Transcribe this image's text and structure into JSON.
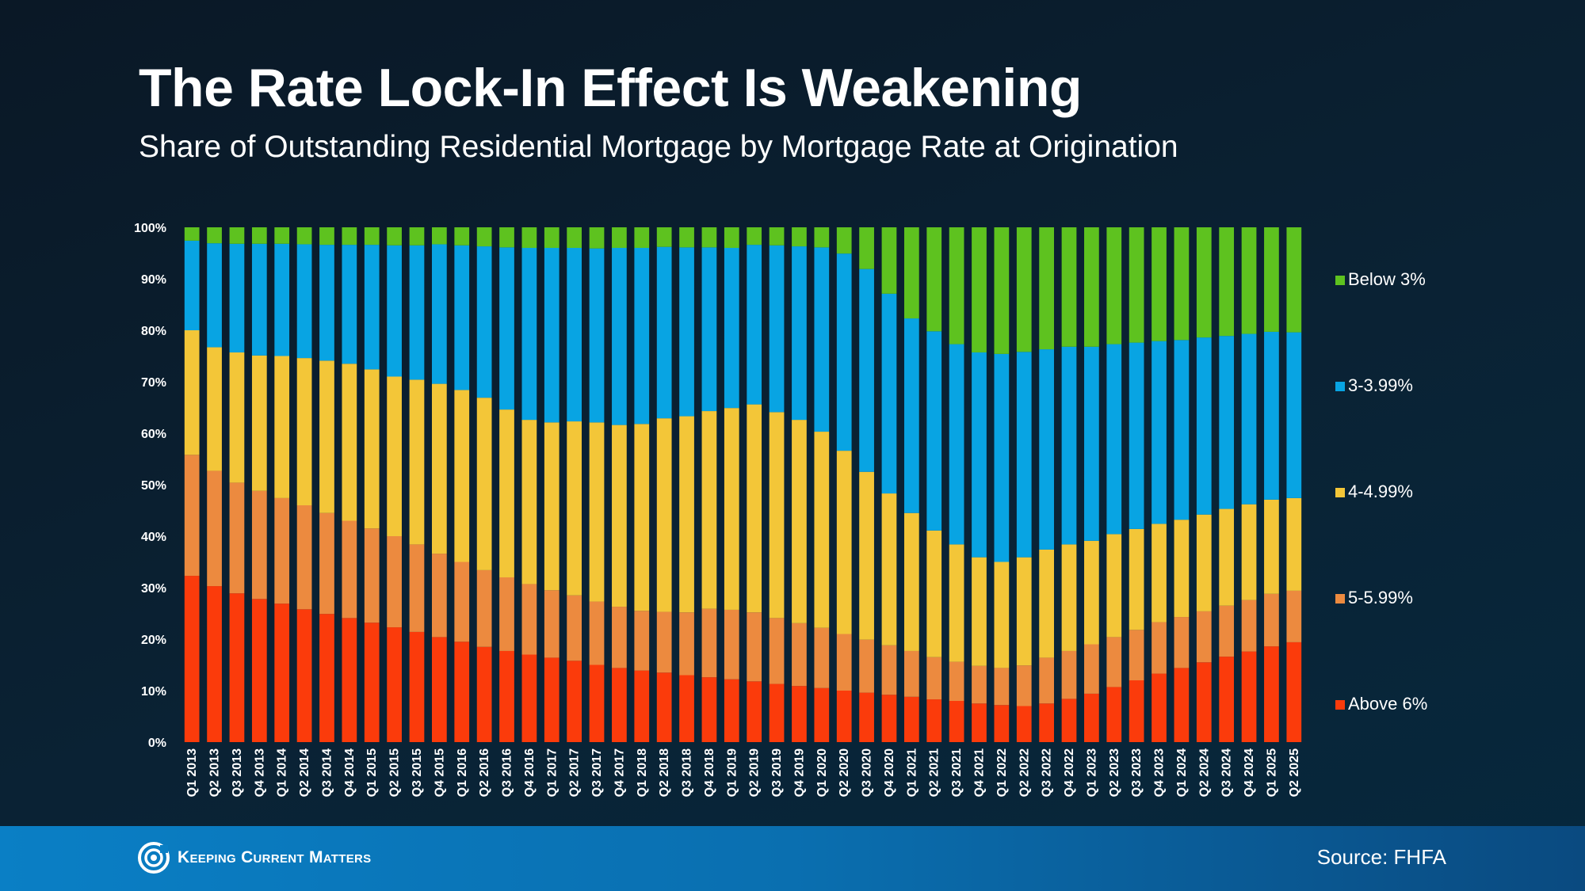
{
  "header": {
    "title": "The Rate Lock-In Effect Is Weakening",
    "subtitle": "Share of Outstanding Residential Mortgage by Mortgage Rate at Origination"
  },
  "footer": {
    "brand": "Keeping Current Matters",
    "source": "Source: FHFA"
  },
  "chart_data": {
    "type": "bar",
    "stacked": true,
    "title": "The Rate Lock-In Effect Is Weakening",
    "subtitle": "Share of Outstanding Residential Mortgage by Mortgage Rate at Origination",
    "xlabel": "",
    "ylabel": "",
    "ylim": [
      0,
      100
    ],
    "yticks": [
      "0%",
      "10%",
      "20%",
      "30%",
      "40%",
      "50%",
      "60%",
      "70%",
      "80%",
      "90%",
      "100%"
    ],
    "grid": false,
    "legend_position": "right",
    "categories": [
      "Q1 2013",
      "Q2 2013",
      "Q3 2013",
      "Q4 2013",
      "Q1 2014",
      "Q2 2014",
      "Q3 2014",
      "Q4 2014",
      "Q1 2015",
      "Q2 2015",
      "Q3 2015",
      "Q4 2015",
      "Q1 2016",
      "Q2 2016",
      "Q3 2016",
      "Q4 2016",
      "Q1 2017",
      "Q2 2017",
      "Q3 2017",
      "Q4 2017",
      "Q1 2018",
      "Q2 2018",
      "Q3 2018",
      "Q4 2018",
      "Q1 2019",
      "Q2 2019",
      "Q3 2019",
      "Q4 2019",
      "Q1 2020",
      "Q2 2020",
      "Q3 2020",
      "Q4 2020",
      "Q1 2021",
      "Q2 2021",
      "Q3 2021",
      "Q4 2021",
      "Q1 2022",
      "Q2 2022",
      "Q3 2022",
      "Q4 2022",
      "Q1 2023",
      "Q2 2023",
      "Q3 2023",
      "Q4 2023",
      "Q1 2024",
      "Q2 2024",
      "Q3 2024",
      "Q4 2024",
      "Q1 2025",
      "Q2 2025"
    ],
    "series": [
      {
        "name": "Above 6%",
        "color": "#fb3b0b",
        "values": [
          32.3,
          30.3,
          28.9,
          27.8,
          26.9,
          25.8,
          24.9,
          24.1,
          23.2,
          22.3,
          21.4,
          20.4,
          19.5,
          18.5,
          17.7,
          17.0,
          16.4,
          15.8,
          15.0,
          14.4,
          13.9,
          13.5,
          13.0,
          12.6,
          12.2,
          11.8,
          11.3,
          10.9,
          10.5,
          10.0,
          9.6,
          9.2,
          8.8,
          8.3,
          8.0,
          7.5,
          7.2,
          7.0,
          7.5,
          8.4,
          9.4,
          10.7,
          12.0,
          13.3,
          14.4,
          15.5,
          16.6,
          17.6,
          18.6,
          19.4
        ]
      },
      {
        "name": "5-5.99%",
        "color": "#ec8a3f",
        "values": [
          23.5,
          22.4,
          21.5,
          21.0,
          20.5,
          20.2,
          19.6,
          18.9,
          18.3,
          17.7,
          17.0,
          16.2,
          15.5,
          14.9,
          14.3,
          13.7,
          13.1,
          12.7,
          12.3,
          11.9,
          11.6,
          11.8,
          12.2,
          13.3,
          13.5,
          13.4,
          12.8,
          12.2,
          11.7,
          11.0,
          10.3,
          9.6,
          8.9,
          8.2,
          7.6,
          7.3,
          7.2,
          7.9,
          8.9,
          9.3,
          9.6,
          9.7,
          9.8,
          10.0,
          9.9,
          9.9,
          9.9,
          10.0,
          10.2,
          10.0
        ]
      },
      {
        "name": "4-4.99%",
        "color": "#f3c638",
        "values": [
          24.2,
          24.0,
          25.3,
          26.3,
          27.6,
          28.6,
          29.6,
          30.5,
          30.9,
          31.0,
          32.0,
          33.0,
          33.4,
          33.5,
          32.6,
          31.9,
          32.6,
          33.8,
          34.8,
          35.3,
          36.3,
          37.6,
          38.1,
          38.4,
          39.2,
          40.4,
          40.0,
          39.5,
          38.1,
          35.6,
          32.6,
          29.5,
          26.8,
          24.6,
          22.8,
          21.1,
          20.6,
          21.0,
          21.0,
          20.7,
          20.1,
          20.0,
          19.6,
          19.1,
          18.9,
          18.8,
          18.8,
          18.6,
          18.3,
          18.0
        ]
      },
      {
        "name": "3-3.99%",
        "color": "#08a4e3",
        "values": [
          17.4,
          20.2,
          21.1,
          21.7,
          21.8,
          22.1,
          22.5,
          23.1,
          24.2,
          25.5,
          26.1,
          27.1,
          28.1,
          29.4,
          31.5,
          33.4,
          33.9,
          33.7,
          33.8,
          34.4,
          34.2,
          33.3,
          32.8,
          31.8,
          31.1,
          31.0,
          32.4,
          33.7,
          35.8,
          38.3,
          39.4,
          38.8,
          37.8,
          38.7,
          38.9,
          39.8,
          40.4,
          39.9,
          38.9,
          38.4,
          37.7,
          36.9,
          36.2,
          35.5,
          34.9,
          34.4,
          33.6,
          33.1,
          32.6,
          32.2
        ]
      },
      {
        "name": "Below 3%",
        "color": "#5ec21f",
        "values": [
          2.6,
          3.1,
          3.2,
          3.2,
          3.2,
          3.3,
          3.4,
          3.4,
          3.4,
          3.5,
          3.5,
          3.3,
          3.5,
          3.7,
          3.9,
          4.0,
          4.0,
          4.0,
          4.1,
          4.0,
          4.0,
          3.8,
          3.9,
          3.9,
          4.0,
          3.4,
          3.5,
          3.7,
          3.9,
          5.1,
          8.1,
          12.9,
          17.7,
          20.2,
          22.7,
          24.3,
          24.6,
          24.2,
          23.7,
          23.2,
          23.2,
          22.7,
          22.4,
          22.1,
          21.9,
          21.4,
          21.1,
          20.7,
          20.3,
          20.4
        ]
      }
    ]
  }
}
